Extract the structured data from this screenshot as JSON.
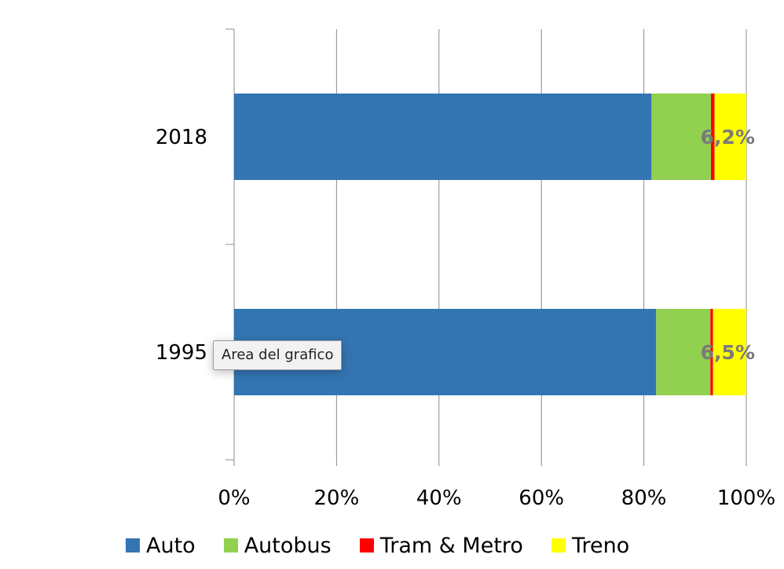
{
  "chart_data": {
    "type": "bar",
    "orientation": "horizontal",
    "stacked": "100%",
    "categories": [
      "2018",
      "1995"
    ],
    "series": [
      {
        "name": "Auto",
        "color": "#3375B2",
        "values": [
          81.5,
          82.4
        ]
      },
      {
        "name": "Autobus",
        "color": "#92D050",
        "values": [
          11.6,
          10.6
        ]
      },
      {
        "name": "Tram & Metro",
        "color": "#FF0000",
        "values": [
          0.7,
          0.5
        ]
      },
      {
        "name": "Treno",
        "color": "#FFFF00",
        "values": [
          6.2,
          6.5
        ]
      }
    ],
    "data_labels": [
      "6,2%",
      "6,5%"
    ],
    "x_ticks": [
      "0%",
      "20%",
      "40%",
      "60%",
      "80%",
      "100%"
    ],
    "xlim": [
      0,
      100
    ],
    "grid": "vertical",
    "legend": "bottom"
  },
  "tooltip": {
    "text": "Area del grafico"
  }
}
